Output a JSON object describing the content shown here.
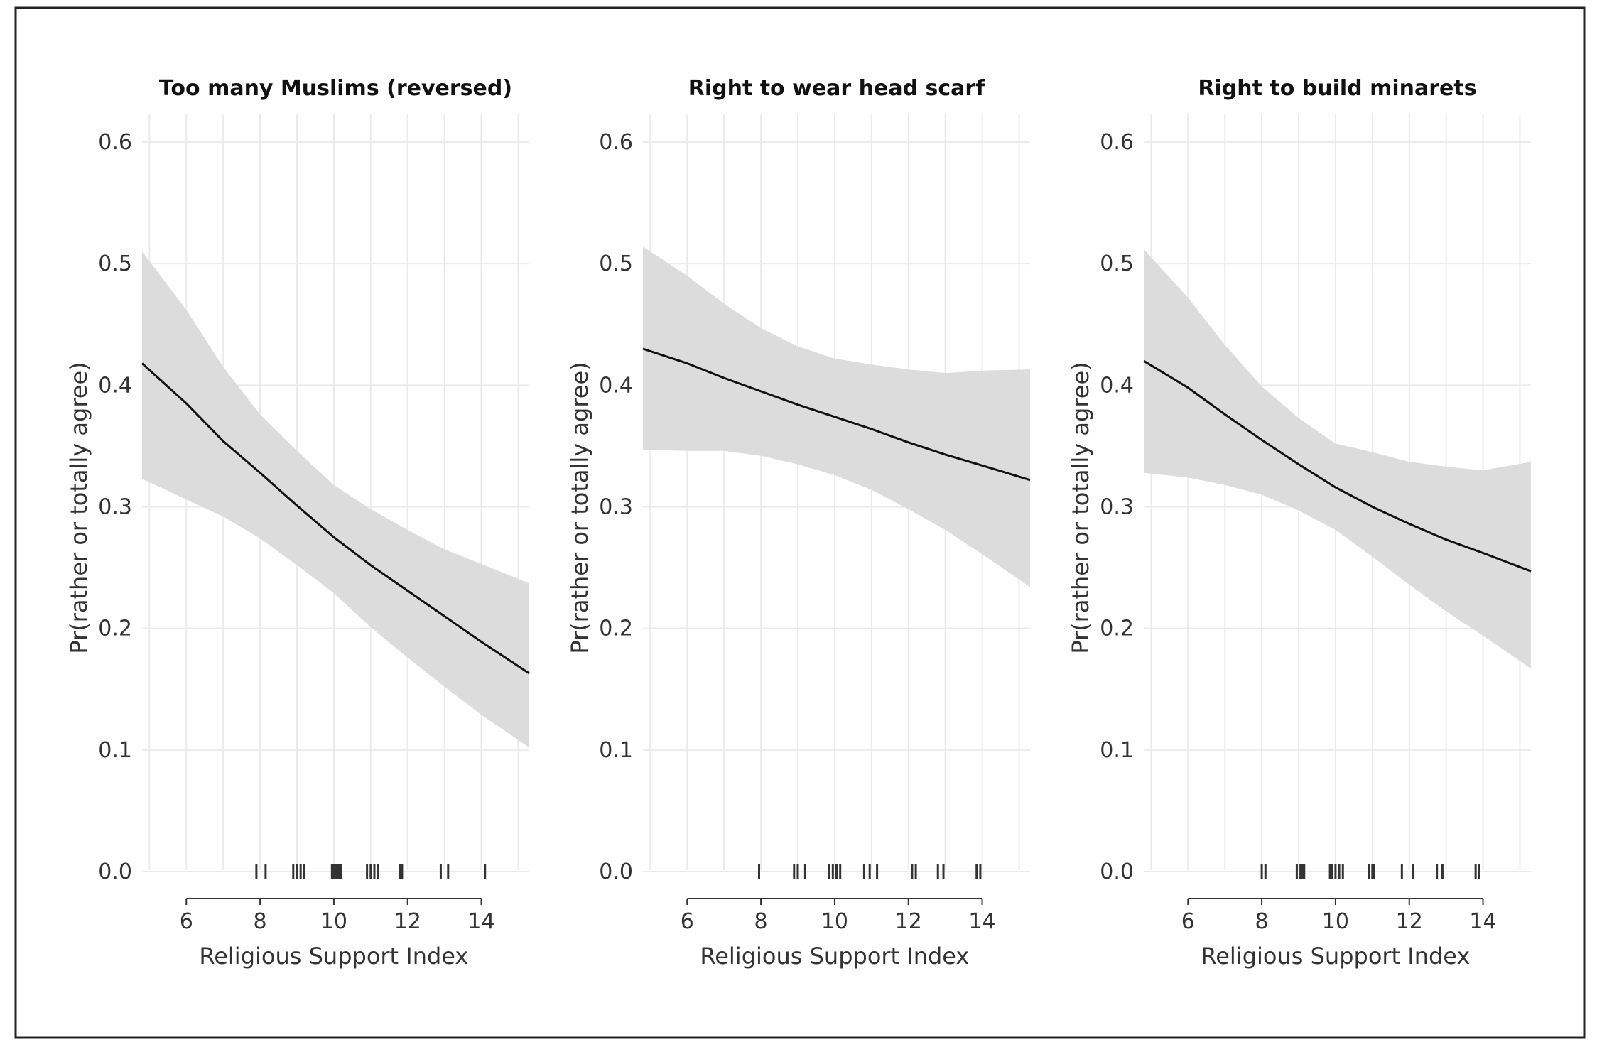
{
  "chart_data": [
    {
      "type": "line",
      "title": "Too many Muslims (reversed)",
      "xlabel": "Religious Support Index",
      "ylabel": "Pr(rather or totally agree)",
      "xlim": [
        4.8,
        15.3
      ],
      "ylim": [
        0,
        0.6
      ],
      "x_ticks": [
        6,
        8,
        10,
        12,
        14
      ],
      "y_ticks": [
        0.0,
        0.1,
        0.2,
        0.3,
        0.4,
        0.5,
        0.6
      ],
      "grid": true,
      "series": [
        {
          "x": [
            4.8,
            6,
            7,
            8,
            9,
            10,
            11,
            12,
            13,
            14,
            15.3
          ],
          "y": [
            0.418,
            0.385,
            0.354,
            0.328,
            0.301,
            0.275,
            0.252,
            0.231,
            0.21,
            0.189,
            0.163
          ],
          "lower": [
            0.323,
            0.306,
            0.292,
            0.274,
            0.252,
            0.229,
            0.201,
            0.176,
            0.152,
            0.129,
            0.102
          ],
          "upper": [
            0.51,
            0.462,
            0.415,
            0.376,
            0.346,
            0.318,
            0.298,
            0.281,
            0.265,
            0.253,
            0.237
          ]
        }
      ],
      "rug": [
        7.9,
        8.15,
        8.9,
        9.0,
        9.1,
        9.2,
        9.95,
        10.0,
        10.05,
        10.1,
        10.15,
        10.2,
        10.9,
        11.0,
        11.1,
        11.2,
        11.8,
        11.85,
        12.9,
        13.1,
        14.1
      ]
    },
    {
      "type": "line",
      "title": "Right to wear head scarf",
      "xlabel": "Religious Support Index",
      "ylabel": "Pr(rather or totally agree)",
      "xlim": [
        4.8,
        15.3
      ],
      "ylim": [
        0,
        0.6
      ],
      "x_ticks": [
        6,
        8,
        10,
        12,
        14
      ],
      "y_ticks": [
        0.0,
        0.1,
        0.2,
        0.3,
        0.4,
        0.5,
        0.6
      ],
      "grid": true,
      "series": [
        {
          "x": [
            4.8,
            6,
            7,
            8,
            9,
            10,
            11,
            12,
            13,
            14,
            15.3
          ],
          "y": [
            0.43,
            0.418,
            0.406,
            0.395,
            0.384,
            0.374,
            0.364,
            0.353,
            0.343,
            0.334,
            0.322
          ],
          "lower": [
            0.347,
            0.346,
            0.346,
            0.342,
            0.335,
            0.326,
            0.314,
            0.298,
            0.281,
            0.261,
            0.234
          ],
          "upper": [
            0.514,
            0.49,
            0.467,
            0.447,
            0.432,
            0.422,
            0.417,
            0.413,
            0.41,
            0.412,
            0.413
          ]
        }
      ],
      "rug": [
        7.95,
        8.9,
        9.0,
        9.2,
        9.85,
        9.95,
        10.05,
        10.15,
        10.8,
        10.95,
        11.15,
        12.1,
        12.2,
        12.8,
        12.95,
        13.85,
        13.95
      ]
    },
    {
      "type": "line",
      "title": "Right to build minarets",
      "xlabel": "Religious Support Index",
      "ylabel": "Pr(rather or totally agree)",
      "xlim": [
        4.8,
        15.3
      ],
      "ylim": [
        0,
        0.6
      ],
      "x_ticks": [
        6,
        8,
        10,
        12,
        14
      ],
      "y_ticks": [
        0.0,
        0.1,
        0.2,
        0.3,
        0.4,
        0.5,
        0.6
      ],
      "grid": true,
      "series": [
        {
          "x": [
            4.8,
            6,
            7,
            8,
            9,
            10,
            11,
            12,
            13,
            14,
            15.3
          ],
          "y": [
            0.42,
            0.398,
            0.376,
            0.355,
            0.335,
            0.316,
            0.3,
            0.286,
            0.273,
            0.262,
            0.247
          ],
          "lower": [
            0.328,
            0.324,
            0.318,
            0.31,
            0.297,
            0.281,
            0.259,
            0.236,
            0.214,
            0.194,
            0.167
          ],
          "upper": [
            0.512,
            0.472,
            0.433,
            0.399,
            0.373,
            0.352,
            0.345,
            0.337,
            0.333,
            0.33,
            0.337
          ]
        }
      ],
      "rug": [
        8.0,
        8.1,
        8.95,
        9.05,
        9.1,
        9.15,
        9.85,
        9.9,
        10.0,
        10.1,
        10.2,
        10.9,
        11.0,
        11.05,
        11.8,
        12.1,
        12.75,
        12.9,
        13.8,
        13.9
      ]
    }
  ]
}
